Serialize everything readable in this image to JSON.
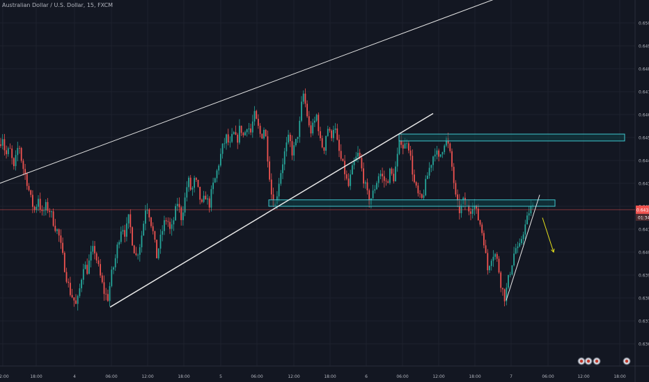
{
  "header": {
    "title": "Australian Dollar / U.S. Dollar, 15, FXCM"
  },
  "colors": {
    "background": "#131722",
    "grid": "#1e222d",
    "up": "#26a69a",
    "down": "#ef5350",
    "axis_text": "#b2b5be",
    "trendline": "#e8e8e8",
    "zone_fill": "#0e4147",
    "zone_border": "#3fc7cf",
    "price_line": "#ef5350",
    "arrow": "#e8e31a"
  },
  "chart_data": {
    "type": "candlestick",
    "symbol": "Australian Dollar / U.S. Dollar",
    "interval": "15",
    "source": "FXCM",
    "ylim": [
      0.6355,
      0.6515
    ],
    "y_ticks": [
      "0.63600",
      "0.63700",
      "0.63800",
      "0.63900",
      "0.64000",
      "0.64100",
      "0.64200",
      "0.64300",
      "0.64400",
      "0.64500",
      "0.64600",
      "0.64700",
      "0.64800",
      "0.64900",
      "0.65000"
    ],
    "x_ticks": [
      "12:00",
      "18:00",
      "4",
      "06:00",
      "12:00",
      "18:00",
      "5",
      "06:00",
      "12:00",
      "18:00",
      "6",
      "06:00",
      "12:00",
      "18:00",
      "7",
      "06:00",
      "12:00",
      "18:00"
    ],
    "current_price": {
      "label": "0.64185",
      "value": 0.64185,
      "countdown": "01:34"
    },
    "price_path": [
      [
        0,
        0.6447
      ],
      [
        3,
        0.6452
      ],
      [
        8,
        0.6442
      ],
      [
        14,
        0.6445
      ],
      [
        20,
        0.6436
      ],
      [
        27,
        0.6448
      ],
      [
        32,
        0.6438
      ],
      [
        38,
        0.6432
      ],
      [
        45,
        0.6422
      ],
      [
        50,
        0.6418
      ],
      [
        55,
        0.6424
      ],
      [
        60,
        0.6416
      ],
      [
        66,
        0.642
      ],
      [
        72,
        0.6418
      ],
      [
        78,
        0.6412
      ],
      [
        84,
        0.6408
      ],
      [
        90,
        0.6398
      ],
      [
        95,
        0.639
      ],
      [
        100,
        0.6383
      ],
      [
        105,
        0.638
      ],
      [
        110,
        0.6376
      ],
      [
        115,
        0.6385
      ],
      [
        120,
        0.6395
      ],
      [
        125,
        0.6392
      ],
      [
        130,
        0.6398
      ],
      [
        135,
        0.6402
      ],
      [
        140,
        0.6395
      ],
      [
        145,
        0.6388
      ],
      [
        150,
        0.6382
      ],
      [
        155,
        0.638
      ],
      [
        160,
        0.639
      ],
      [
        165,
        0.6396
      ],
      [
        170,
        0.6405
      ],
      [
        175,
        0.6412
      ],
      [
        180,
        0.6408
      ],
      [
        185,
        0.6415
      ],
      [
        190,
        0.6405
      ],
      [
        195,
        0.6398
      ],
      [
        200,
        0.6402
      ],
      [
        205,
        0.641
      ],
      [
        210,
        0.6422
      ],
      [
        215,
        0.6416
      ],
      [
        220,
        0.6408
      ],
      [
        225,
        0.6398
      ],
      [
        230,
        0.6405
      ],
      [
        235,
        0.6412
      ],
      [
        240,
        0.6415
      ],
      [
        245,
        0.6408
      ],
      [
        250,
        0.6415
      ],
      [
        255,
        0.6422
      ],
      [
        260,
        0.6415
      ],
      [
        265,
        0.6422
      ],
      [
        270,
        0.6432
      ],
      [
        275,
        0.6426
      ],
      [
        280,
        0.6432
      ],
      [
        285,
        0.6426
      ],
      [
        290,
        0.642
      ],
      [
        295,
        0.6425
      ],
      [
        300,
        0.642
      ],
      [
        305,
        0.6428
      ],
      [
        310,
        0.6433
      ],
      [
        315,
        0.644
      ],
      [
        320,
        0.6446
      ],
      [
        325,
        0.645
      ],
      [
        330,
        0.6446
      ],
      [
        335,
        0.6452
      ],
      [
        340,
        0.6448
      ],
      [
        345,
        0.6455
      ],
      [
        350,
        0.645
      ],
      [
        355,
        0.6456
      ],
      [
        360,
        0.6452
      ],
      [
        365,
        0.646
      ],
      [
        370,
        0.6455
      ],
      [
        375,
        0.645
      ],
      [
        380,
        0.6455
      ],
      [
        385,
        0.644
      ],
      [
        390,
        0.6425
      ],
      [
        395,
        0.642
      ],
      [
        400,
        0.643
      ],
      [
        405,
        0.6438
      ],
      [
        410,
        0.6445
      ],
      [
        415,
        0.645
      ],
      [
        420,
        0.6443
      ],
      [
        425,
        0.6448
      ],
      [
        430,
        0.6455
      ],
      [
        435,
        0.647
      ],
      [
        440,
        0.6462
      ],
      [
        445,
        0.6452
      ],
      [
        450,
        0.6455
      ],
      [
        455,
        0.646
      ],
      [
        460,
        0.6448
      ],
      [
        465,
        0.6445
      ],
      [
        470,
        0.6455
      ],
      [
        475,
        0.645
      ],
      [
        480,
        0.6456
      ],
      [
        485,
        0.6446
      ],
      [
        490,
        0.644
      ],
      [
        495,
        0.6435
      ],
      [
        500,
        0.6428
      ],
      [
        505,
        0.6435
      ],
      [
        510,
        0.644
      ],
      [
        515,
        0.6443
      ],
      [
        520,
        0.6435
      ],
      [
        525,
        0.6428
      ],
      [
        530,
        0.6422
      ],
      [
        535,
        0.6425
      ],
      [
        540,
        0.643
      ],
      [
        545,
        0.6435
      ],
      [
        550,
        0.6432
      ],
      [
        555,
        0.643
      ],
      [
        560,
        0.6435
      ],
      [
        565,
        0.6432
      ],
      [
        570,
        0.644
      ],
      [
        575,
        0.645
      ],
      [
        580,
        0.6445
      ],
      [
        585,
        0.645
      ],
      [
        590,
        0.644
      ],
      [
        595,
        0.643
      ],
      [
        600,
        0.6425
      ],
      [
        605,
        0.6422
      ],
      [
        610,
        0.6428
      ],
      [
        615,
        0.6435
      ],
      [
        620,
        0.644
      ],
      [
        625,
        0.6445
      ],
      [
        630,
        0.644
      ],
      [
        635,
        0.6445
      ],
      [
        640,
        0.645
      ],
      [
        645,
        0.6445
      ],
      [
        650,
        0.6435
      ],
      [
        655,
        0.6422
      ],
      [
        660,
        0.6418
      ],
      [
        665,
        0.6422
      ],
      [
        670,
        0.642
      ],
      [
        675,
        0.6418
      ],
      [
        680,
        0.6422
      ],
      [
        685,
        0.6416
      ],
      [
        690,
        0.6412
      ],
      [
        695,
        0.6405
      ],
      [
        700,
        0.6392
      ],
      [
        705,
        0.6398
      ],
      [
        710,
        0.64
      ],
      [
        715,
        0.6395
      ],
      [
        720,
        0.6385
      ],
      [
        725,
        0.638
      ],
      [
        730,
        0.6388
      ],
      [
        735,
        0.6395
      ],
      [
        740,
        0.6402
      ],
      [
        745,
        0.64
      ],
      [
        750,
        0.6408
      ],
      [
        755,
        0.6412
      ],
      [
        760,
        0.6418
      ],
      [
        764,
        0.642
      ],
      [
        768,
        0.6418
      ]
    ]
  },
  "drawings": {
    "trendlines": [
      {
        "name": "upper-channel-line",
        "from": [
          -5,
          0.64295
        ],
        "to": [
          760,
          0.6516
        ],
        "width": 1
      },
      {
        "name": "ascending-trendline",
        "from": [
          158,
          0.6376
        ],
        "to": [
          622,
          0.64605
        ],
        "width": 1.5
      },
      {
        "name": "rising-wedge-line",
        "from": [
          727,
          0.6379
        ],
        "to": [
          775,
          0.6425
        ],
        "width": 1
      }
    ],
    "zones": [
      {
        "name": "resistance-zone",
        "x1": 573,
        "x2": 897,
        "y_top": 0.64515,
        "y_bottom": 0.64485
      },
      {
        "name": "support-zone",
        "x1": 386,
        "x2": 797,
        "y_top": 0.64228,
        "y_bottom": 0.642
      }
    ],
    "arrow": {
      "name": "bearish-arrow",
      "from": [
        779,
        0.6415
      ],
      "to": [
        795,
        0.64
      ]
    },
    "event_icons": [
      835,
      845,
      857,
      900
    ]
  }
}
